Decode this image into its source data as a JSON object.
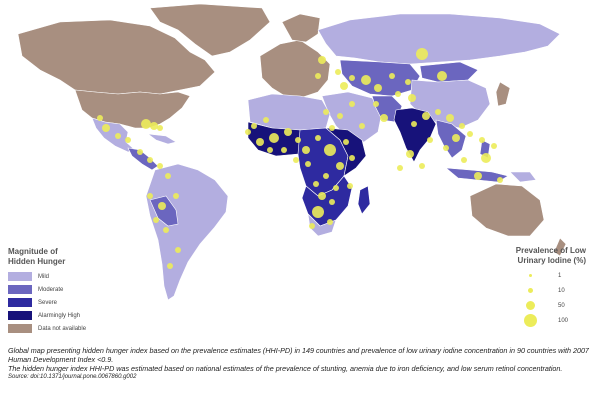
{
  "legend": {
    "title_line1": "Magnitude of",
    "title_line2": "Hidden Hunger",
    "items": [
      {
        "label": "Mild",
        "color": "#b3aee0"
      },
      {
        "label": "Moderate",
        "color": "#6b66bf"
      },
      {
        "label": "Severe",
        "color": "#2e2aa0"
      },
      {
        "label": "Alarmingly High",
        "color": "#17127a"
      },
      {
        "label": "Data not available",
        "color": "#a88f80"
      }
    ]
  },
  "prevalence": {
    "title_line1": "Prevalence of Low",
    "title_line2": "Urinary Iodine (%)",
    "dot_color": "#ecec5a",
    "items": [
      {
        "label": "1",
        "value": 1
      },
      {
        "label": "10",
        "value": 10
      },
      {
        "label": "50",
        "value": 50
      },
      {
        "label": "100",
        "value": 100
      }
    ]
  },
  "caption": {
    "line1": "Global map presenting hidden hunger index based on the prevalence estimates (HHI-PD) in 149 countries and prevalence of low urinary iodine concentration in 90 countries with 2007 Human Development Index <0.9.",
    "line2": "The hidden hunger index HHI-PD was estimated based on national estimates of the prevalence of stunting, anemia due to iron deficiency, and low serum retinol concentration.",
    "source": "Source: doi:10.1371/journal.pone.0067860.g002"
  },
  "colors": {
    "mild": "#b3aee0",
    "moderate": "#6b66bf",
    "severe": "#2e2aa0",
    "alarming": "#17127a",
    "na": "#a88f80",
    "dot": "#ecec5a"
  }
}
